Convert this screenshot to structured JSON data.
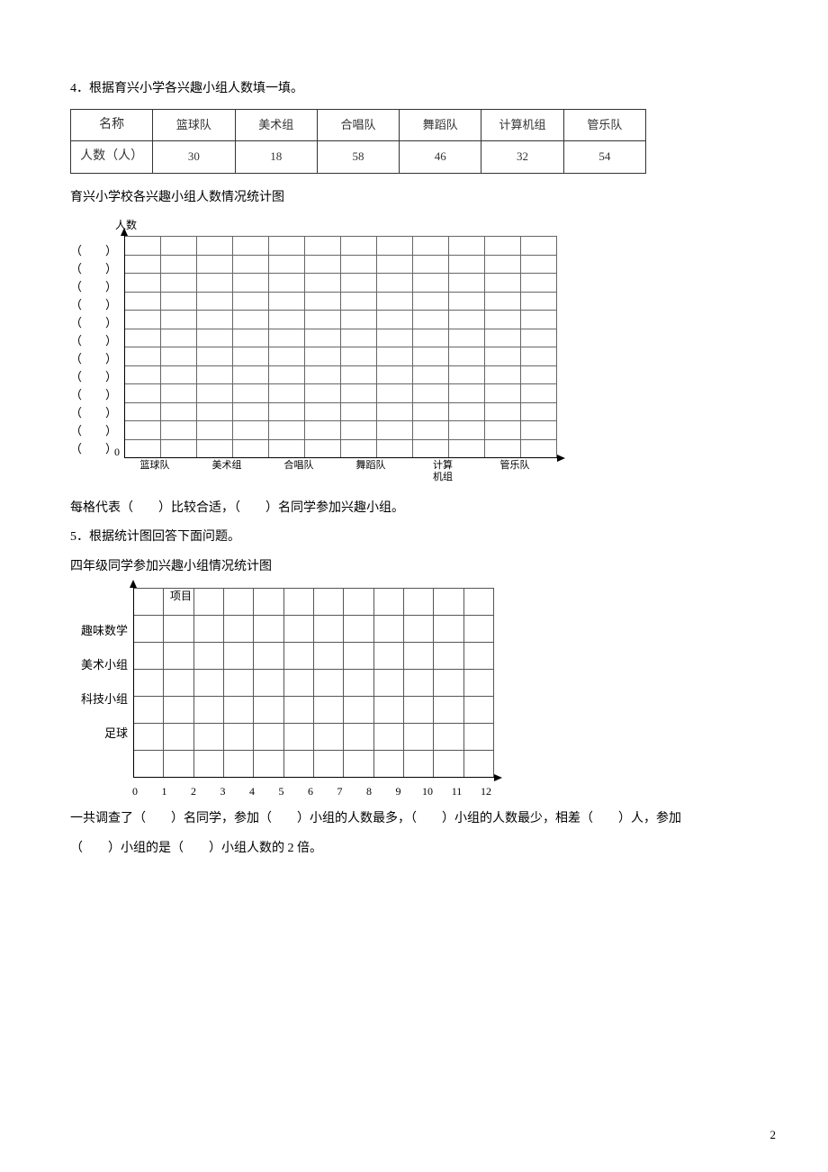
{
  "q4": {
    "prompt": "4．根据育兴小学各兴趣小组人数填一填。",
    "table": {
      "header": [
        "名称",
        "篮球队",
        "美术组",
        "合唱队",
        "舞蹈队",
        "计算机组",
        "管乐队"
      ],
      "rowLabel": "人数（人）",
      "values": [
        "30",
        "18",
        "58",
        "46",
        "32",
        "54"
      ]
    },
    "chartTitle": "育兴小学校各兴趣小组人数情况统计图",
    "chart": {
      "ylabel_top": "人数",
      "y_brackets": [
        "（　　）",
        "（　　）",
        "（　　）",
        "（　　）",
        "（　　）",
        "（　　）",
        "（　　）",
        "（　　）",
        "（　　）",
        "（　　）",
        "（　　）",
        "（　　）"
      ],
      "zero": "0",
      "x_categories": [
        "篮球队",
        "美术组",
        "合唱队",
        "舞蹈队",
        "计算\n机组",
        "管乐队"
      ],
      "grid_cols": 12,
      "grid_rows": 12,
      "grid_color": "#666666",
      "axis_color": "#000000"
    },
    "sentence": "每格代表（　　）比较合适，（　　）名同学参加兴趣小组。"
  },
  "q5": {
    "prompt": "5．根据统计图回答下面问题。",
    "chartTitle": "四年级同学参加兴趣小组情况统计图",
    "chart": {
      "y_title": "项目",
      "y_categories": [
        "趣味数学",
        "美术小组",
        "科技小组",
        "足球"
      ],
      "x_ticks": [
        "0",
        "1",
        "2",
        "3",
        "4",
        "5",
        "6",
        "7",
        "8",
        "9",
        "10",
        "11",
        "12"
      ],
      "grid_cols": 12,
      "grid_rows": 7,
      "grid_color": "#555555",
      "axis_color": "#000000"
    },
    "sentence1": "一共调查了（　　）名同学，参加（　　）小组的人数最多，（　　）小组的人数最少，相差（　　）人，参加",
    "sentence2": "（　　）小组的是（　　）小组人数的 2 倍。"
  },
  "pageNumber": "2"
}
